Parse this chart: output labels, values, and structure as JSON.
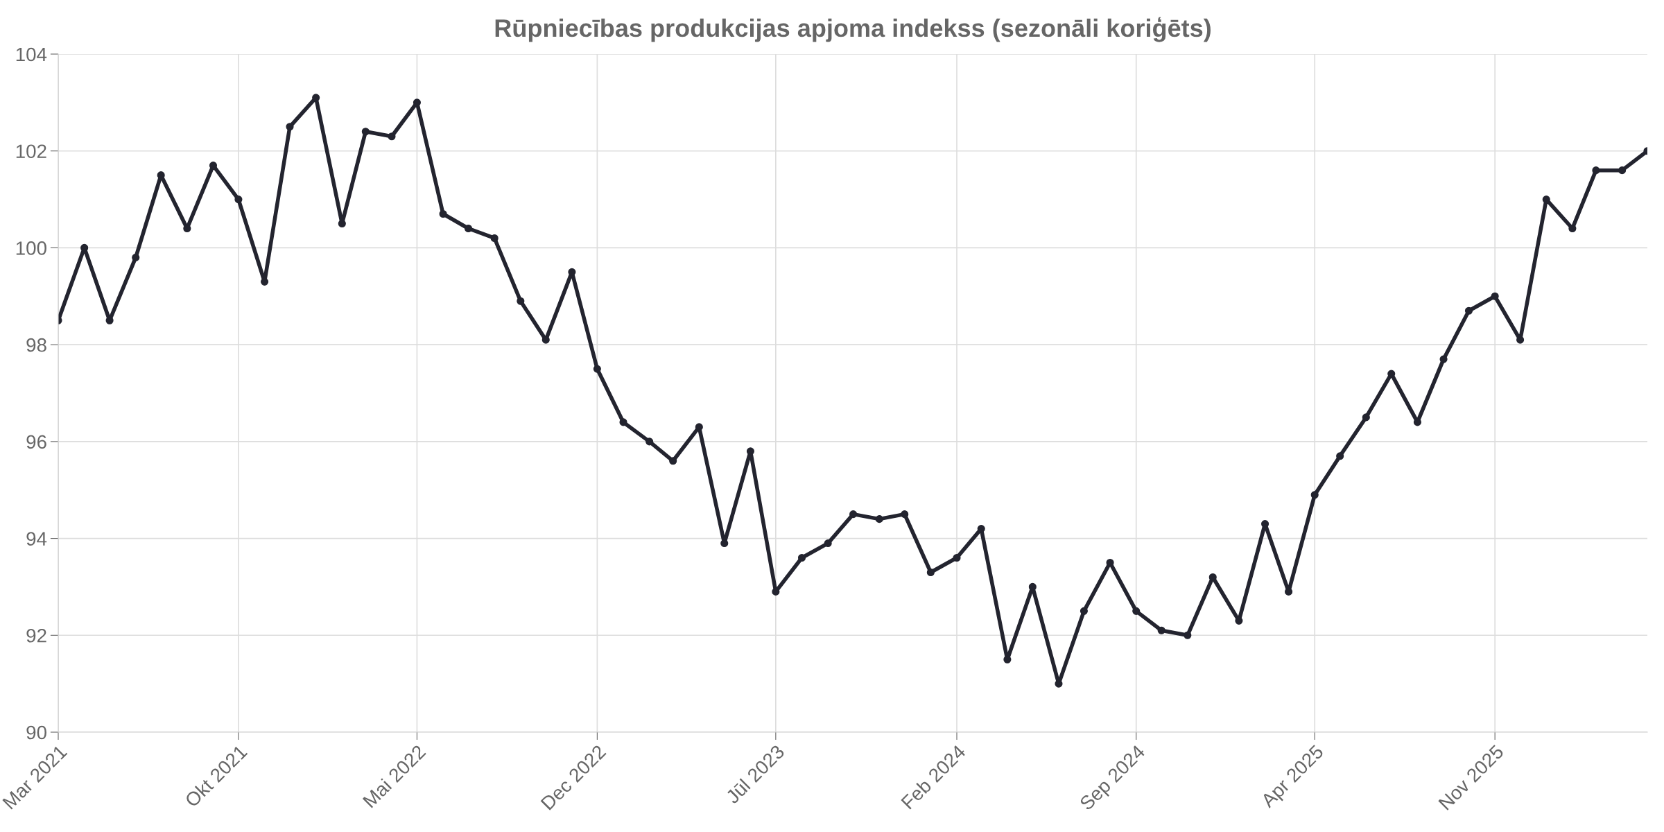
{
  "chart_data": {
    "type": "line",
    "title": "Rūpniecības produkcijas apjoma indekss (sezonāli koriģēts)",
    "x": [
      "2021-03",
      "2021-04",
      "2021-05",
      "2021-06",
      "2021-07",
      "2021-08",
      "2021-09",
      "2021-10",
      "2021-11",
      "2021-12",
      "2022-01",
      "2022-02",
      "2022-03",
      "2022-04",
      "2022-05",
      "2022-06",
      "2022-07",
      "2022-08",
      "2022-09",
      "2022-10",
      "2022-11",
      "2022-12",
      "2023-01",
      "2023-02",
      "2023-03",
      "2023-04",
      "2023-05",
      "2023-06",
      "2023-07",
      "2023-08",
      "2023-09",
      "2023-10",
      "2023-11",
      "2023-12",
      "2024-01",
      "2024-02",
      "2024-03",
      "2024-04",
      "2024-05",
      "2024-06",
      "2024-07",
      "2024-08",
      "2024-09",
      "2024-10",
      "2024-11",
      "2024-12",
      "2025-01",
      "2025-02",
      "2025-03",
      "2025-04",
      "2025-05",
      "2025-06",
      "2025-07",
      "2025-08",
      "2025-09",
      "2025-10",
      "2025-11",
      "2025-12",
      "2026-01",
      "2026-02",
      "2026-03",
      "2026-04",
      "2026-05"
    ],
    "series": [
      {
        "color": "#23242f",
        "values": [
          98.5,
          100.0,
          98.5,
          99.8,
          101.5,
          100.4,
          101.7,
          101.0,
          99.3,
          102.5,
          103.1,
          100.5,
          102.4,
          102.3,
          103.0,
          100.7,
          100.4,
          100.2,
          98.9,
          98.1,
          99.5,
          97.5,
          96.4,
          96.0,
          95.6,
          96.3,
          93.9,
          95.8,
          92.9,
          93.6,
          93.9,
          94.5,
          94.4,
          94.5,
          93.3,
          93.6,
          94.2,
          91.5,
          93.0,
          91.0,
          92.5,
          93.5,
          92.5,
          92.1,
          92.0,
          93.2,
          92.3,
          94.3,
          92.9,
          94.9,
          95.7,
          96.5,
          97.4,
          96.4,
          97.7,
          98.7,
          99.0,
          98.1,
          101.0,
          100.4,
          101.6,
          101.6,
          102.0
        ]
      }
    ],
    "xlim": [
      "2021-03",
      "2026-05"
    ],
    "xticks": [
      {
        "value": "2021-03",
        "label": "Mar 2021"
      },
      {
        "value": "2021-10",
        "label": "Okt 2021"
      },
      {
        "value": "2022-05",
        "label": "Mai 2022"
      },
      {
        "value": "2022-12",
        "label": "Dec 2022"
      },
      {
        "value": "2023-07",
        "label": "Jūl 2023"
      },
      {
        "value": "2024-02",
        "label": "Feb 2024"
      },
      {
        "value": "2024-09",
        "label": "Sep 2024"
      },
      {
        "value": "2025-04",
        "label": "Apr 2025"
      },
      {
        "value": "2025-11",
        "label": "Nov 2025"
      }
    ],
    "ylim": [
      90,
      104
    ],
    "yticks": [
      90,
      92,
      94,
      96,
      98,
      100,
      102,
      104
    ],
    "grid": true,
    "marker": "circle",
    "line_style": "solid"
  }
}
